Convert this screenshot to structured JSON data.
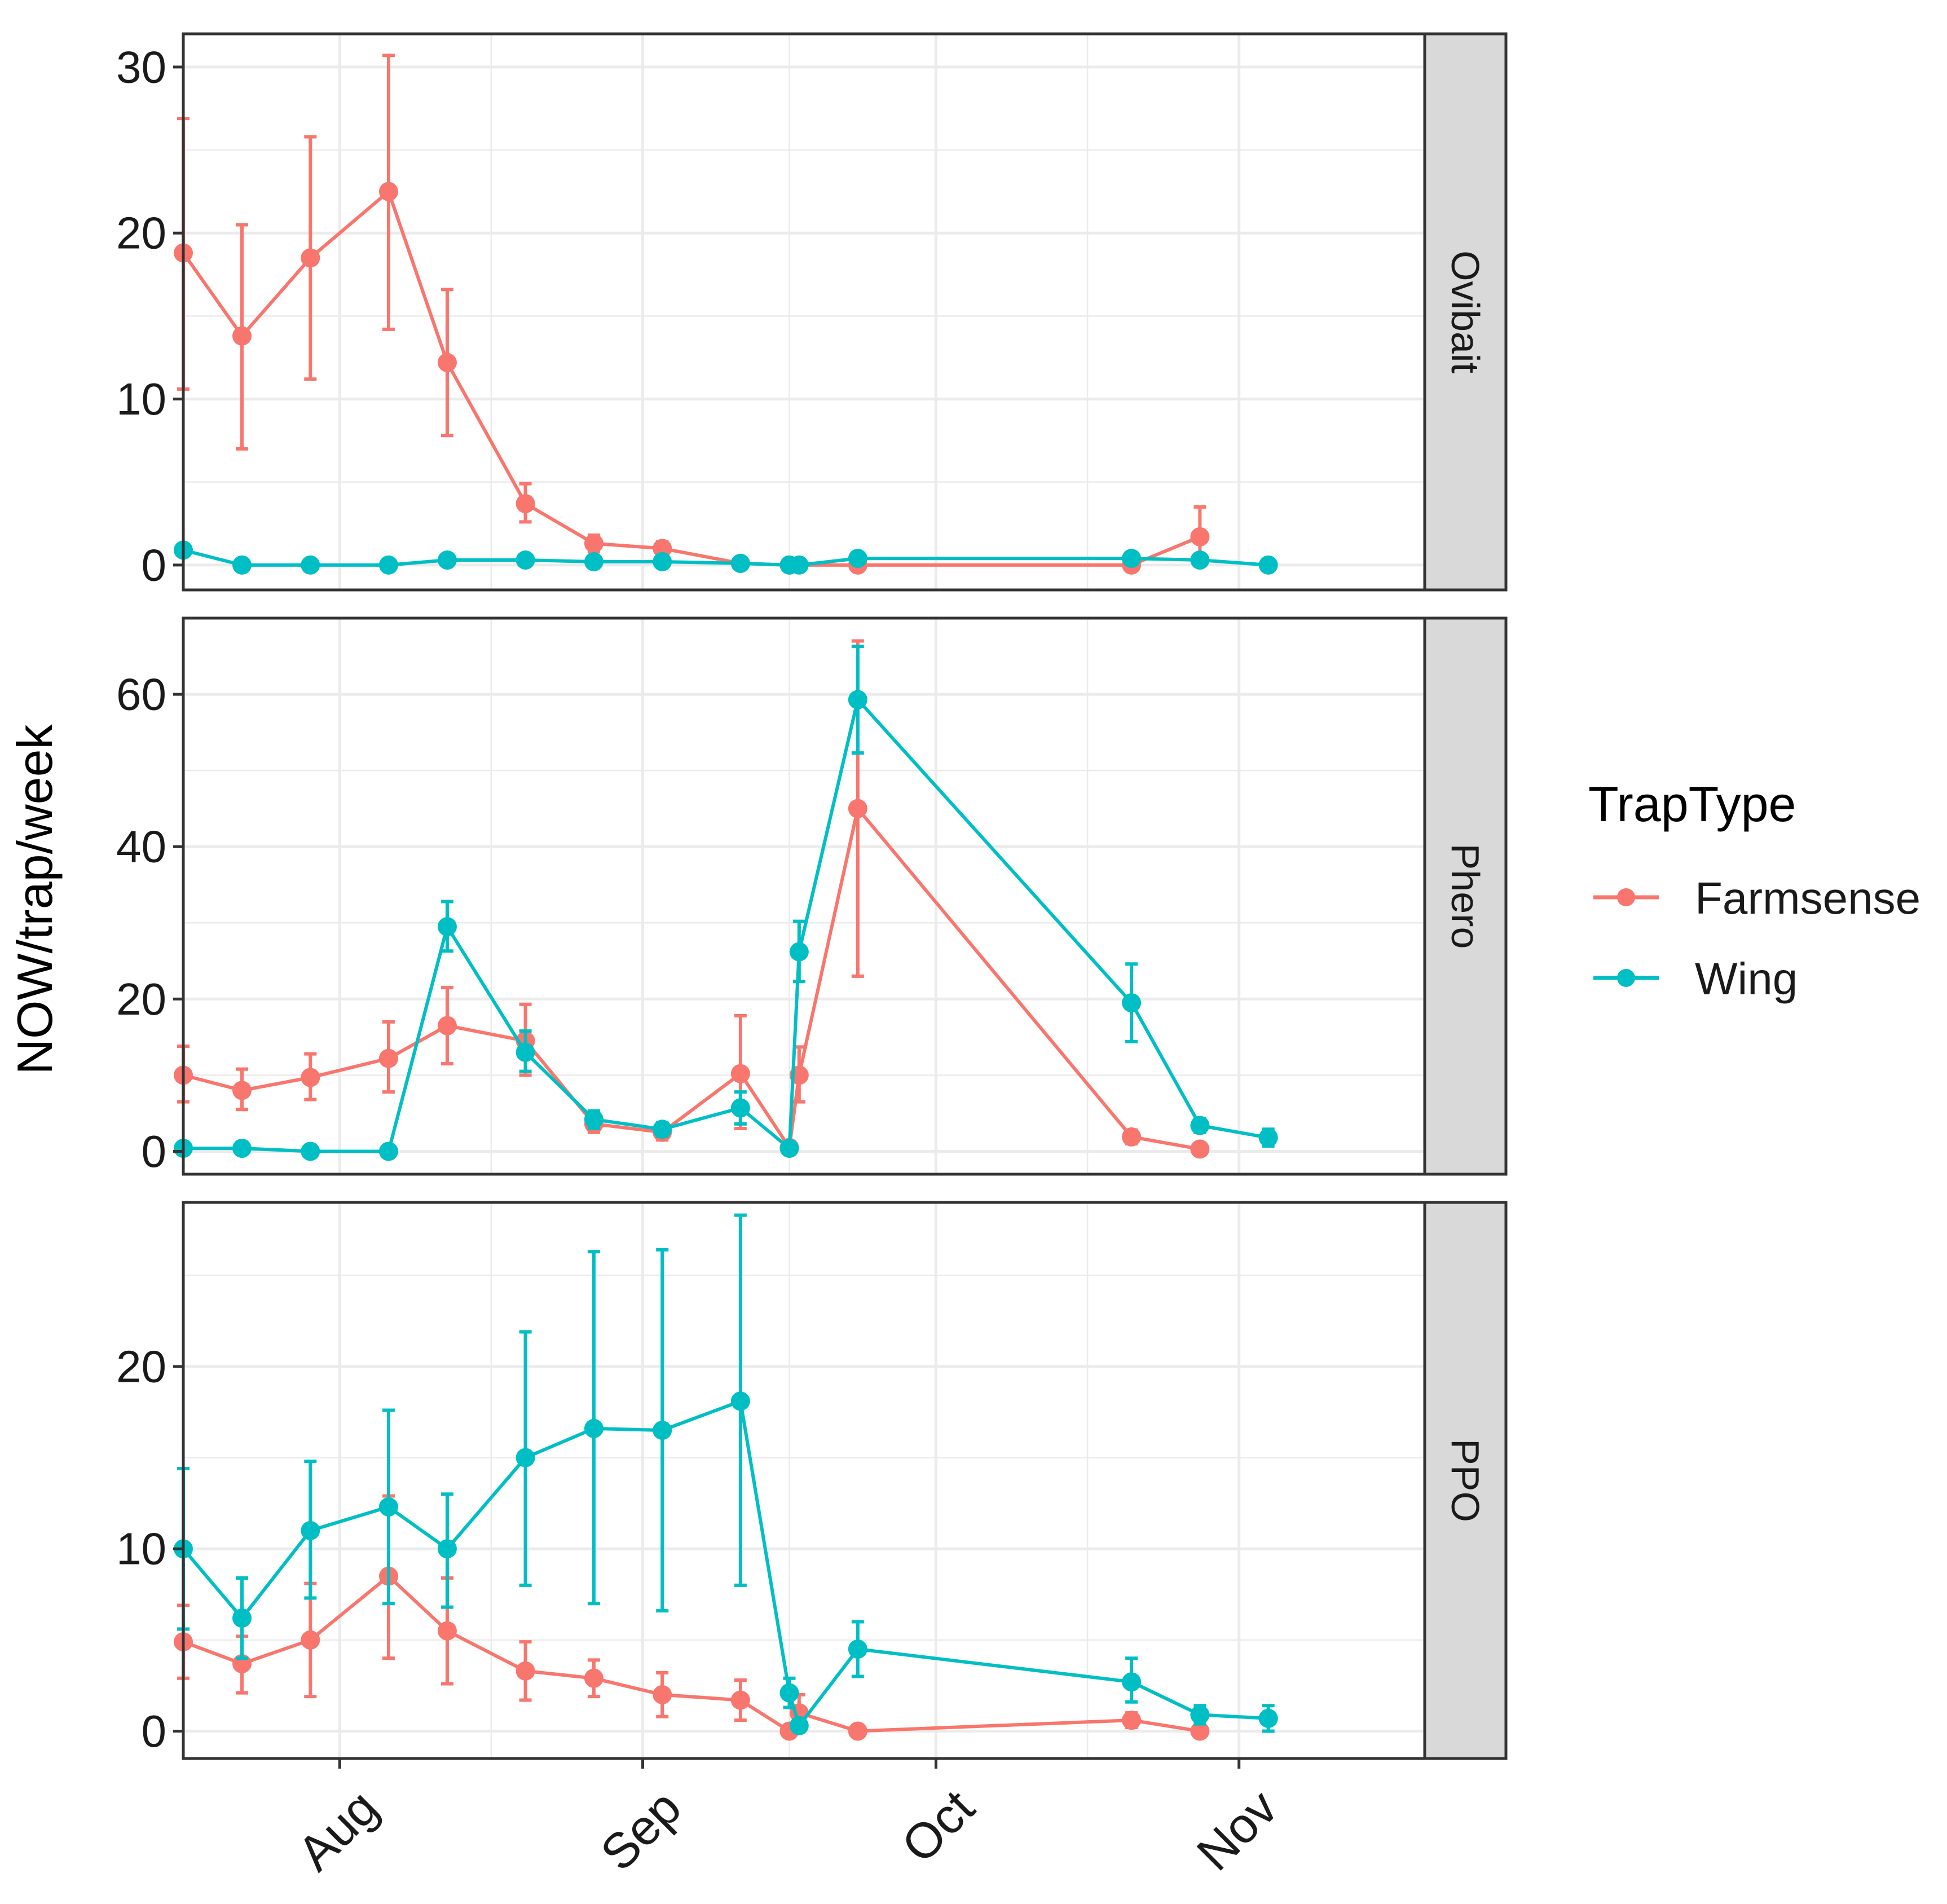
{
  "chart_data": {
    "type": "line",
    "ylabel": "NOW/trap/week",
    "xlabel": "",
    "x_axis": {
      "domain_days": [
        -16,
        111
      ],
      "tick_days": [
        0,
        31,
        61,
        92
      ],
      "tick_labels": [
        "Aug",
        "Sep",
        "Oct",
        "Nov"
      ],
      "minor_tick_days": [
        15.5,
        46,
        76.5
      ]
    },
    "legend": {
      "title": "TrapType",
      "position": "right",
      "entries": [
        "Farmsense",
        "Wing"
      ]
    },
    "colors": {
      "Farmsense": "#F8766D",
      "Wing": "#00BFC4",
      "panel_border": "#333333",
      "grid_major": "#EBEBEB",
      "strip_fill": "#D9D9D9"
    },
    "panels": [
      {
        "strip_label": "Ovibait",
        "ylim": [
          -1.5,
          32
        ],
        "y_ticks": [
          0,
          10,
          20,
          30
        ],
        "y_minor_ticks": [
          5,
          15,
          25
        ],
        "series": [
          {
            "name": "Farmsense",
            "x": [
              -16,
              -10,
              -3,
              5,
              11,
              19,
              26,
              33,
              41,
              46,
              53,
              81,
              88
            ],
            "y": [
              18.8,
              13.8,
              18.5,
              22.5,
              12.2,
              3.7,
              1.3,
              1.0,
              0.1,
              0.0,
              0.0,
              0.0,
              1.7
            ],
            "err_low": [
              10.6,
              7.0,
              11.2,
              14.2,
              7.8,
              2.6,
              0.8,
              0.6,
              0.0,
              0.0,
              0.0,
              0.0,
              0.0
            ],
            "err_high": [
              26.9,
              20.5,
              25.8,
              30.7,
              16.6,
              4.9,
              1.8,
              1.4,
              0.3,
              0.1,
              0.1,
              0.1,
              3.5
            ]
          },
          {
            "name": "Wing",
            "x": [
              -16,
              -10,
              -3,
              5,
              11,
              19,
              26,
              33,
              41,
              46,
              47,
              53,
              81,
              88,
              95
            ],
            "y": [
              0.9,
              0.0,
              0.0,
              0.0,
              0.3,
              0.3,
              0.2,
              0.2,
              0.1,
              0.0,
              0.0,
              0.4,
              0.4,
              0.3,
              0.0
            ],
            "err_low": [
              0.6,
              0.0,
              0.0,
              0.0,
              0.1,
              0.1,
              0.1,
              0.1,
              0.0,
              0.0,
              0.0,
              0.2,
              0.2,
              0.1,
              0.0
            ],
            "err_high": [
              1.2,
              0.1,
              0.1,
              0.1,
              0.5,
              0.5,
              0.3,
              0.3,
              0.2,
              0.1,
              0.1,
              0.6,
              0.6,
              0.5,
              0.1
            ]
          }
        ]
      },
      {
        "strip_label": "Phero",
        "ylim": [
          -3,
          70
        ],
        "y_ticks": [
          0,
          20,
          40,
          60
        ],
        "y_minor_ticks": [
          10,
          30,
          50
        ],
        "series": [
          {
            "name": "Farmsense",
            "x": [
              -16,
              -10,
              -3,
              5,
              11,
              19,
              26,
              33,
              41,
              46,
              47,
              53,
              81,
              88
            ],
            "y": [
              10.0,
              8.0,
              9.7,
              12.2,
              16.5,
              14.5,
              3.6,
              2.5,
              10.2,
              0.5,
              10.0,
              45.0,
              1.9,
              0.3
            ],
            "err_low": [
              6.5,
              5.5,
              6.8,
              7.8,
              11.5,
              10.0,
              2.5,
              1.5,
              3.0,
              0.0,
              6.5,
              23.0,
              1.0,
              0.0
            ],
            "err_high": [
              13.8,
              10.8,
              12.8,
              17.0,
              21.5,
              19.3,
              5.0,
              3.5,
              17.8,
              1.0,
              13.7,
              67.0,
              2.8,
              0.6
            ]
          },
          {
            "name": "Wing",
            "x": [
              -16,
              -10,
              -3,
              5,
              11,
              19,
              26,
              33,
              41,
              46,
              47,
              53,
              81,
              88,
              95
            ],
            "y": [
              0.4,
              0.4,
              0.0,
              0.0,
              29.5,
              13.0,
              4.2,
              2.9,
              5.7,
              0.4,
              26.2,
              59.3,
              19.5,
              3.4,
              1.8
            ],
            "err_low": [
              0.2,
              0.2,
              0.0,
              0.0,
              26.3,
              10.5,
              3.0,
              2.0,
              3.6,
              0.1,
              22.3,
              52.3,
              14.4,
              2.5,
              0.7
            ],
            "err_high": [
              0.6,
              0.6,
              0.1,
              0.1,
              32.8,
              15.8,
              5.3,
              3.8,
              7.8,
              0.7,
              30.2,
              66.3,
              24.6,
              4.3,
              2.9
            ]
          }
        ]
      },
      {
        "strip_label": "PPO",
        "ylim": [
          -1.5,
          29
        ],
        "y_ticks": [
          0,
          10,
          20
        ],
        "y_minor_ticks": [
          5,
          15,
          25
        ],
        "series": [
          {
            "name": "Farmsense",
            "x": [
              -16,
              -10,
              -3,
              5,
              11,
              19,
              26,
              33,
              41,
              46,
              47,
              53,
              81,
              88
            ],
            "y": [
              4.9,
              3.7,
              5.0,
              8.5,
              5.5,
              3.3,
              2.9,
              2.0,
              1.7,
              0.0,
              1.0,
              0.0,
              0.6,
              0.0
            ],
            "err_low": [
              2.9,
              2.1,
              1.9,
              4.0,
              2.6,
              1.7,
              1.9,
              0.8,
              0.6,
              0.0,
              0.0,
              0.0,
              0.2,
              0.0
            ],
            "err_high": [
              6.9,
              5.2,
              8.1,
              12.9,
              8.4,
              4.9,
              3.9,
              3.2,
              2.8,
              0.1,
              2.0,
              0.1,
              1.0,
              0.1
            ]
          },
          {
            "name": "Wing",
            "x": [
              -16,
              -10,
              -3,
              5,
              11,
              19,
              26,
              33,
              41,
              46,
              47,
              53,
              81,
              88,
              95
            ],
            "y": [
              10.0,
              6.2,
              11.0,
              12.3,
              10.0,
              15.0,
              16.6,
              16.5,
              18.1,
              2.1,
              0.3,
              4.5,
              2.7,
              0.9,
              0.7
            ],
            "err_low": [
              5.6,
              4.0,
              7.3,
              7.0,
              6.8,
              8.0,
              7.0,
              6.6,
              8.0,
              1.3,
              0.0,
              3.0,
              1.6,
              0.4,
              0.0
            ],
            "err_high": [
              14.4,
              8.4,
              14.8,
              17.6,
              13.0,
              21.9,
              26.3,
              26.4,
              28.3,
              2.9,
              0.6,
              6.0,
              4.0,
              1.4,
              1.4
            ]
          }
        ]
      }
    ]
  }
}
